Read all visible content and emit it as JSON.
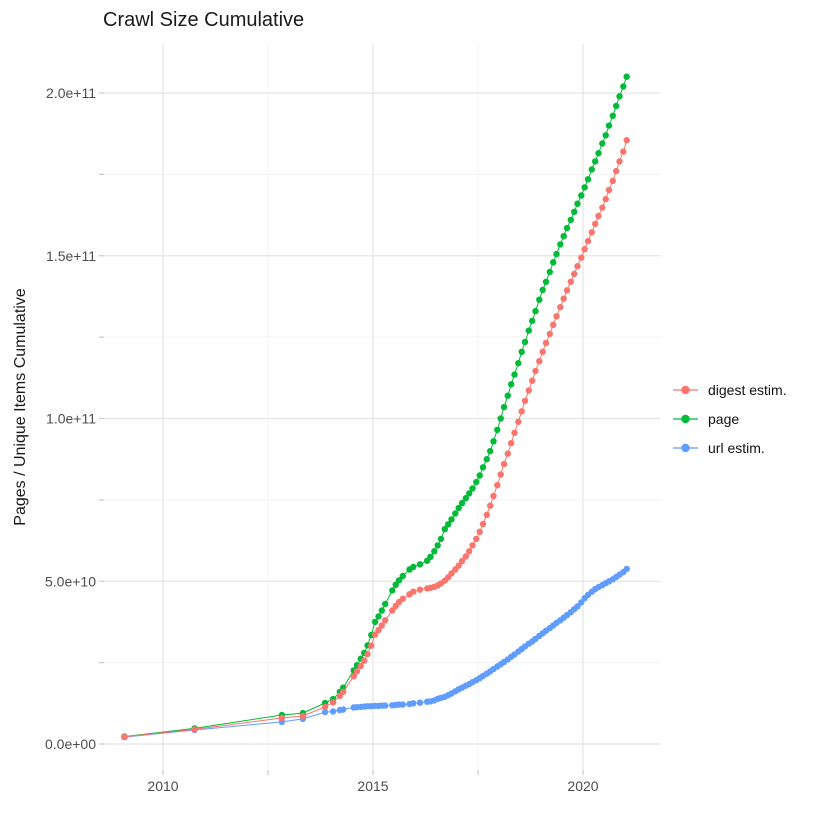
{
  "title": "Crawl Size Cumulative",
  "axes": {
    "y_label": "Pages / Unique Items Cumulative",
    "y_ticks": [
      {
        "label": "0.0e+00",
        "value": 0
      },
      {
        "label": "5.0e+10",
        "value": 50
      },
      {
        "label": "1.0e+11",
        "value": 100
      },
      {
        "label": "1.5e+11",
        "value": 150
      },
      {
        "label": "2.0e+11",
        "value": 200
      }
    ],
    "x_ticks": [
      {
        "label": "2010",
        "value": 2010
      },
      {
        "label": "2015",
        "value": 2015
      },
      {
        "label": "2020",
        "value": 2020
      }
    ],
    "minor_x": [
      2012.5,
      2017.5
    ],
    "minor_y": [
      25,
      75,
      125,
      175
    ]
  },
  "legend": {
    "entries": [
      {
        "label": "digest estim.",
        "color": "#F8766D"
      },
      {
        "label": "page",
        "color": "#00BA38"
      },
      {
        "label": "url estim.",
        "color": "#619CFF"
      }
    ]
  },
  "colors": {
    "digest": "#F8766D",
    "page": "#00BA38",
    "url": "#619CFF",
    "grid_major": "#E4E4E4",
    "grid_minor": "#F3F3F3",
    "tick_mark": "#C9C9C9",
    "tick_text": "#4d4d4d"
  },
  "chart_data": {
    "type": "scatter",
    "title": "Crawl Size Cumulative",
    "xlabel": "",
    "ylabel": "Pages / Unique Items Cumulative",
    "x_unit": "year (decimal)",
    "value_unit": "items, in billions (1e9); axis shown in scientific notation",
    "xlim": [
      2008.6,
      2022.3
    ],
    "ylim_billions": [
      0,
      215
    ],
    "grid": true,
    "legend_position": "right",
    "x": [
      2009.08,
      2010.75,
      2012.83,
      2013.33,
      2013.86,
      2014.05,
      2014.21,
      2014.29,
      2014.54,
      2014.62,
      2014.71,
      2014.79,
      2014.87,
      2014.96,
      2015.05,
      2015.13,
      2015.21,
      2015.29,
      2015.46,
      2015.54,
      2015.62,
      2015.71,
      2015.87,
      2015.96,
      2016.12,
      2016.29,
      2016.37,
      2016.46,
      2016.54,
      2016.62,
      2016.71,
      2016.79,
      2016.87,
      2016.96,
      2017.04,
      2017.12,
      2017.21,
      2017.29,
      2017.37,
      2017.46,
      2017.54,
      2017.62,
      2017.71,
      2017.79,
      2017.87,
      2017.96,
      2018.04,
      2018.12,
      2018.21,
      2018.29,
      2018.37,
      2018.46,
      2018.54,
      2018.62,
      2018.71,
      2018.79,
      2018.87,
      2018.96,
      2019.04,
      2019.12,
      2019.21,
      2019.29,
      2019.37,
      2019.46,
      2019.54,
      2019.62,
      2019.71,
      2019.79,
      2019.87,
      2019.96,
      2020.04,
      2020.12,
      2020.21,
      2020.29,
      2020.37,
      2020.46,
      2020.54,
      2020.62,
      2020.71,
      2020.79,
      2020.87,
      2020.96,
      2021.04
    ],
    "series": [
      {
        "name": "digest estim.",
        "color": "#F8766D",
        "values": [
          2.2,
          4.5,
          8.0,
          8.6,
          11.4,
          12.8,
          14.8,
          16.0,
          20.8,
          22.3,
          24.0,
          25.6,
          27.6,
          30.2,
          33.6,
          35.0,
          36.4,
          38.0,
          41.0,
          42.4,
          43.6,
          44.6,
          46.0,
          46.8,
          47.4,
          47.8,
          48.0,
          48.3,
          48.7,
          49.3,
          50.2,
          51.2,
          52.4,
          53.6,
          54.8,
          56.2,
          57.6,
          59.2,
          61.0,
          63.0,
          65.2,
          67.6,
          70.4,
          73.2,
          76.2,
          79.5,
          82.8,
          86.0,
          89.2,
          92.4,
          95.6,
          99.0,
          102.2,
          105.4,
          108.6,
          111.6,
          114.6,
          117.6,
          120.5,
          123.2,
          126.0,
          128.8,
          131.4,
          134.2,
          136.8,
          139.4,
          142.0,
          144.4,
          146.8,
          149.4,
          152.0,
          154.5,
          157.2,
          159.8,
          162.2,
          164.8,
          167.4,
          170.2,
          173.0,
          176.0,
          179.0,
          182.0,
          185.5
        ]
      },
      {
        "name": "page",
        "color": "#00BA38",
        "values": [
          2.3,
          4.8,
          8.9,
          9.5,
          12.6,
          13.8,
          16.0,
          17.3,
          22.6,
          24.2,
          26.2,
          28.0,
          30.3,
          33.5,
          37.5,
          39.2,
          41.0,
          43.0,
          47.2,
          48.9,
          50.3,
          51.6,
          53.6,
          54.4,
          55.2,
          56.3,
          57.5,
          59.2,
          61.0,
          63.0,
          66.0,
          67.5,
          69.0,
          70.8,
          72.5,
          74.0,
          75.5,
          77.0,
          78.5,
          80.5,
          82.5,
          85.0,
          87.5,
          90.0,
          93.0,
          96.5,
          100.0,
          103.5,
          107.0,
          110.5,
          113.5,
          117.0,
          120.5,
          123.5,
          127.0,
          130.0,
          133.0,
          136.5,
          139.5,
          142.0,
          145.0,
          148.0,
          150.5,
          153.5,
          156.0,
          158.5,
          161.0,
          163.5,
          166.0,
          168.5,
          171.0,
          173.5,
          176.5,
          179.0,
          181.5,
          184.5,
          187.0,
          190.0,
          193.0,
          196.0,
          199.0,
          202.0,
          205.0
        ]
      },
      {
        "name": "url estim.",
        "color": "#619CFF",
        "values": [
          2.1,
          4.3,
          6.8,
          7.7,
          9.8,
          10.0,
          10.4,
          10.6,
          11.2,
          11.3,
          11.4,
          11.5,
          11.6,
          11.6,
          11.7,
          11.7,
          11.8,
          11.8,
          11.9,
          12.0,
          12.1,
          12.1,
          12.3,
          12.5,
          12.7,
          13.0,
          13.1,
          13.4,
          13.9,
          14.2,
          14.5,
          15.0,
          15.5,
          16.2,
          16.8,
          17.3,
          17.9,
          18.4,
          19.0,
          19.6,
          20.2,
          20.9,
          21.6,
          22.3,
          23.0,
          23.8,
          24.5,
          25.2,
          26.0,
          26.8,
          27.5,
          28.4,
          29.2,
          30.0,
          30.8,
          31.5,
          32.3,
          33.2,
          34.0,
          34.8,
          35.6,
          36.4,
          37.2,
          38.0,
          38.8,
          39.6,
          40.5,
          41.4,
          42.3,
          43.5,
          44.8,
          45.8,
          46.8,
          47.6,
          48.2,
          48.8,
          49.4,
          50.0,
          50.6,
          51.3,
          52.0,
          52.8,
          53.8
        ]
      }
    ]
  }
}
